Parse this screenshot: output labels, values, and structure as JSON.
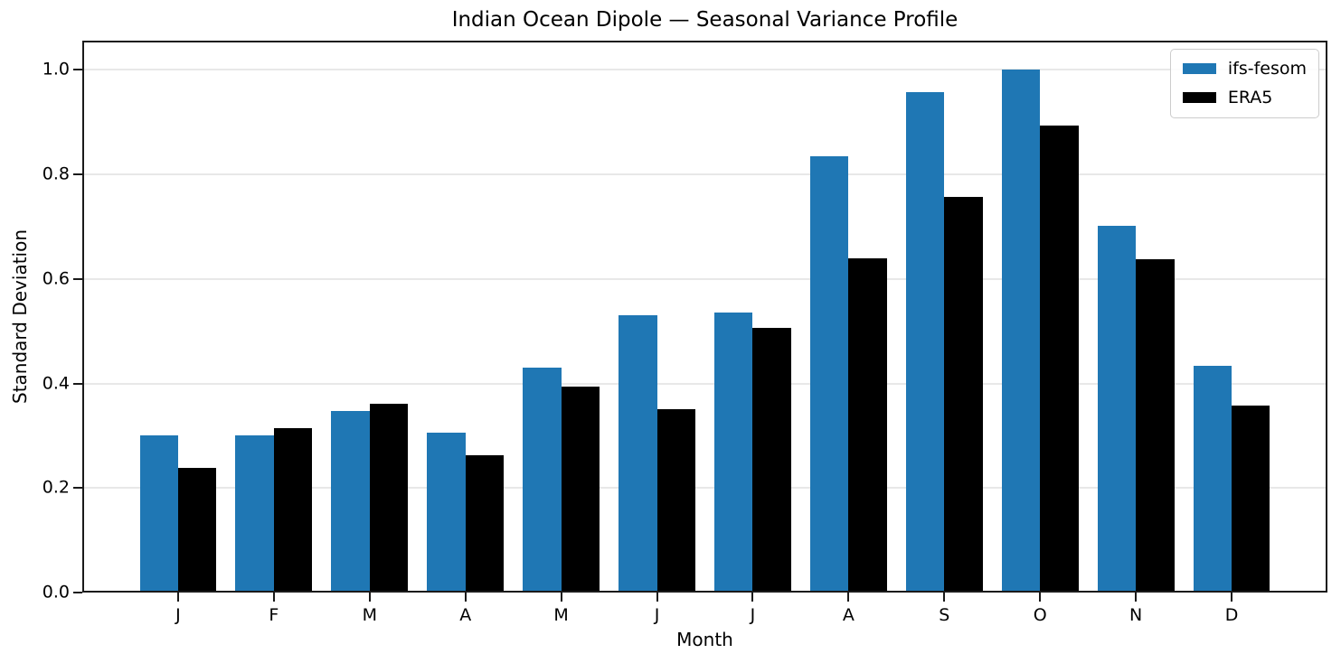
{
  "figure": {
    "background": "#ffffff"
  },
  "chart_data": {
    "type": "bar",
    "title": "Indian Ocean Dipole — Seasonal Variance Profile",
    "xlabel": "Month",
    "ylabel": "Standard Deviation",
    "categories": [
      "J",
      "F",
      "M",
      "A",
      "M",
      "J",
      "J",
      "A",
      "S",
      "O",
      "N",
      "D"
    ],
    "series": [
      {
        "name": "ifs-fesom",
        "color": "#1f77b4",
        "values": [
          0.3,
          0.3,
          0.348,
          0.306,
          0.43,
          0.53,
          0.536,
          0.834,
          0.958,
          1.0,
          0.702,
          0.433
        ]
      },
      {
        "name": "ERA5",
        "color": "#000000",
        "values": [
          0.238,
          0.315,
          0.361,
          0.263,
          0.394,
          0.351,
          0.507,
          0.64,
          0.757,
          0.894,
          0.637,
          0.358
        ]
      }
    ],
    "ytick_values": [
      0.0,
      0.2,
      0.4,
      0.6,
      0.8,
      1.0
    ],
    "ytick_labels": [
      "0.0",
      "0.2",
      "0.4",
      "0.6",
      "0.8",
      "1.0"
    ],
    "ylim": [
      0,
      1.056
    ],
    "xlim": [
      -1,
      12
    ],
    "bar_width": 0.4,
    "grid": "horizontal",
    "gridline_color": "#e8e8e8",
    "legend_position": "upper right"
  }
}
